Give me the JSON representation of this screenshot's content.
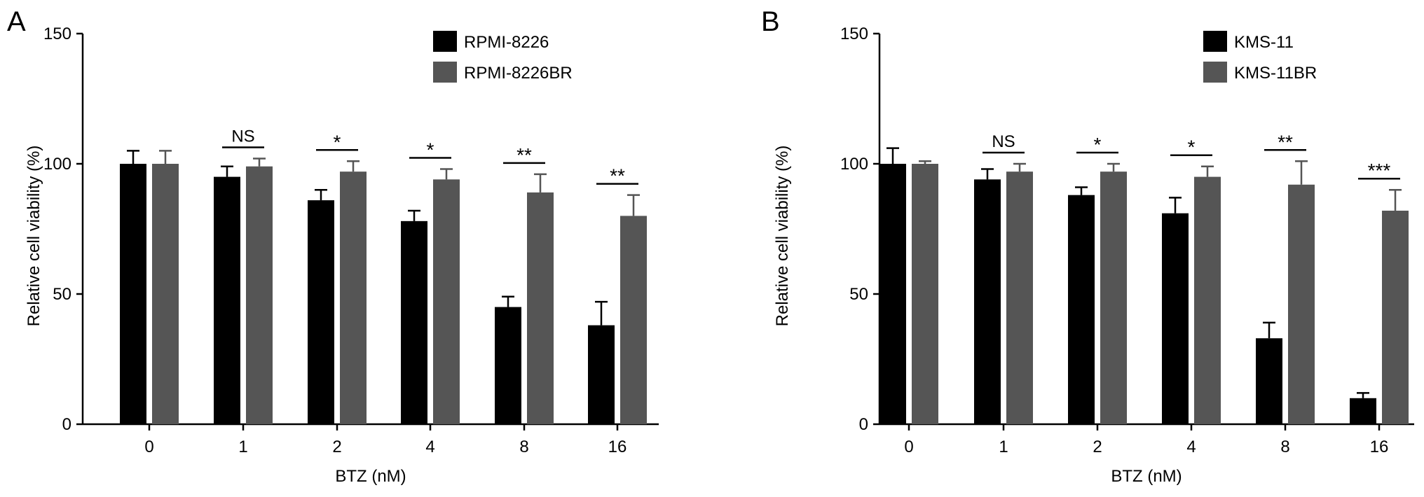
{
  "chart_data": [
    {
      "type": "bar",
      "panel_label": "A",
      "xlabel": "BTZ (nM)",
      "ylabel": "Relative cell viability (%)",
      "ylim": [
        0,
        150
      ],
      "yticks": [
        0,
        50,
        100,
        150
      ],
      "categories": [
        "0",
        "1",
        "2",
        "4",
        "8",
        "16"
      ],
      "legend_position": "top-right",
      "series": [
        {
          "name": "RPMI-8226",
          "color": "#000000",
          "values": [
            100,
            95,
            86,
            78,
            45,
            38
          ],
          "errors": [
            5,
            4,
            4,
            4,
            4,
            9
          ]
        },
        {
          "name": "RPMI-8226BR",
          "color": "#555555",
          "values": [
            100,
            99,
            97,
            94,
            89,
            80
          ],
          "errors": [
            5,
            3,
            4,
            4,
            7,
            8
          ]
        }
      ],
      "significance": [
        "",
        "NS",
        "*",
        "*",
        "**",
        "**"
      ]
    },
    {
      "type": "bar",
      "panel_label": "B",
      "xlabel": "BTZ (nM)",
      "ylabel": "Relative cell viability (%)",
      "ylim": [
        0,
        150
      ],
      "yticks": [
        0,
        50,
        100,
        150
      ],
      "categories": [
        "0",
        "1",
        "2",
        "4",
        "8",
        "16"
      ],
      "legend_position": "top-right",
      "series": [
        {
          "name": "KMS-11",
          "color": "#000000",
          "values": [
            100,
            94,
            88,
            81,
            33,
            10
          ],
          "errors": [
            6,
            4,
            3,
            6,
            6,
            2
          ]
        },
        {
          "name": "KMS-11BR",
          "color": "#555555",
          "values": [
            100,
            97,
            97,
            95,
            92,
            82
          ],
          "errors": [
            1,
            3,
            3,
            4,
            9,
            8
          ]
        }
      ],
      "significance": [
        "",
        "NS",
        "*",
        "*",
        "**",
        "***"
      ]
    }
  ]
}
